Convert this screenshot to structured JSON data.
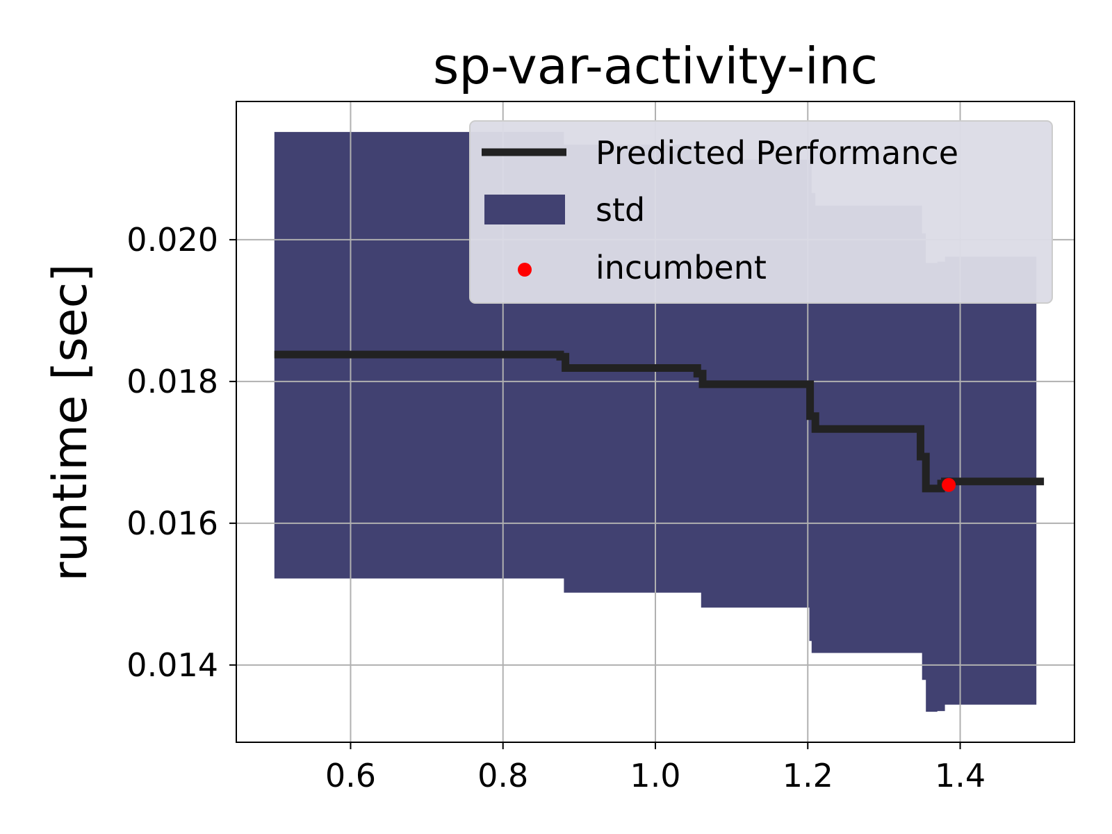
{
  "chart_data": {
    "type": "line",
    "title": "sp-var-activity-inc",
    "xlabel": "",
    "ylabel": "runtime [sec]",
    "xlim": [
      0.45,
      1.55
    ],
    "ylim": [
      0.01291,
      0.02195
    ],
    "grid": true,
    "legend_position": "top-right",
    "x_ticks": [
      0.6,
      0.8,
      1.0,
      1.2,
      1.4
    ],
    "x_tick_labels": [
      "0.6",
      "0.8",
      "1.0",
      "1.2",
      "1.4"
    ],
    "y_ticks": [
      0.014,
      0.016,
      0.018,
      0.02
    ],
    "y_tick_labels": [
      "0.014",
      "0.016",
      "0.018",
      "0.020"
    ],
    "series": [
      {
        "name": "Predicted Performance",
        "kind": "line",
        "color": "#222222",
        "x": [
          0.5,
          0.872,
          0.875,
          0.882,
          1.05,
          1.055,
          1.062,
          1.2,
          1.203,
          1.21,
          1.345,
          1.348,
          1.352,
          1.355,
          1.37,
          1.375,
          1.38,
          1.51
        ],
        "y": [
          0.01838,
          0.01838,
          0.01835,
          0.01819,
          0.01819,
          0.01811,
          0.01796,
          0.01796,
          0.01751,
          0.01733,
          0.01733,
          0.01694,
          0.01694,
          0.01649,
          0.01649,
          0.01656,
          0.01659,
          0.01659
        ]
      },
      {
        "name": "std",
        "kind": "band",
        "color": "#414171",
        "x": [
          0.5,
          0.87,
          0.875,
          0.88,
          1.05,
          1.055,
          1.06,
          1.2,
          1.202,
          1.205,
          1.21,
          1.345,
          1.35,
          1.355,
          1.365,
          1.37,
          1.38,
          1.5
        ],
        "upper": [
          0.02152,
          0.02152,
          0.02152,
          0.02134,
          0.02134,
          0.02134,
          0.02113,
          0.02113,
          0.02108,
          0.02066,
          0.02048,
          0.02048,
          0.02009,
          0.01967,
          0.01967,
          0.01969,
          0.01976,
          0.01976
        ],
        "lower": [
          0.01522,
          0.01522,
          0.01522,
          0.01502,
          0.01502,
          0.01502,
          0.01481,
          0.01481,
          0.01434,
          0.01417,
          0.01417,
          0.01417,
          0.01379,
          0.01334,
          0.01334,
          0.01335,
          0.01344,
          0.01344
        ]
      },
      {
        "name": "incumbent",
        "kind": "point",
        "color": "#ff0000",
        "x": [
          1.385
        ],
        "y": [
          0.01654
        ]
      }
    ]
  }
}
